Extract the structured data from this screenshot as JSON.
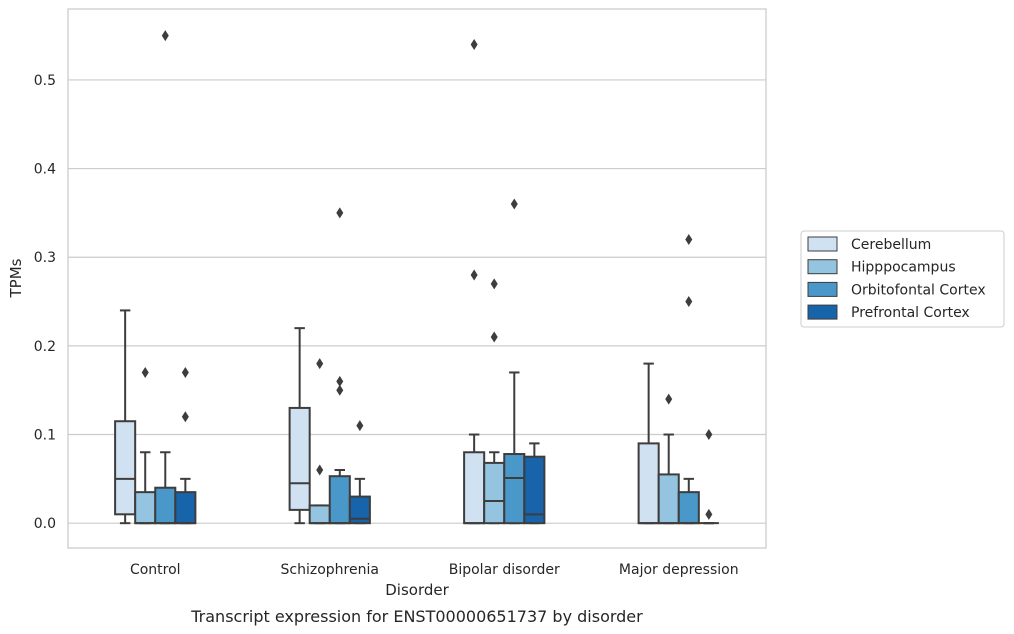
{
  "chart_data": {
    "type": "boxplot",
    "title": "",
    "caption": "Transcript expression for ENST00000651737 by disorder",
    "xlabel": "Disorder",
    "ylabel": "TPMs",
    "ylim": [
      -0.028,
      0.58
    ],
    "yticks": [
      "0.0",
      "0.1",
      "0.2",
      "0.3",
      "0.4",
      "0.5"
    ],
    "grid": true,
    "legend_position": "right",
    "categories": [
      "Control",
      "Schizophrenia",
      "Bipolar disorder",
      "Major depression"
    ],
    "series": [
      {
        "name": "Cerebellum",
        "color": "#d0e1f2",
        "boxes": [
          {
            "whisker_low": 0.0,
            "q1": 0.01,
            "median": 0.05,
            "q3": 0.115,
            "whisker_high": 0.24,
            "outliers": []
          },
          {
            "whisker_low": 0.0,
            "q1": 0.015,
            "median": 0.045,
            "q3": 0.13,
            "whisker_high": 0.22,
            "outliers": []
          },
          {
            "whisker_low": 0.0,
            "q1": 0.0,
            "median": 0.0,
            "q3": 0.08,
            "whisker_high": 0.1,
            "outliers": [
              0.28,
              0.54
            ]
          },
          {
            "whisker_low": 0.0,
            "q1": 0.0,
            "median": 0.0,
            "q3": 0.09,
            "whisker_high": 0.18,
            "outliers": []
          }
        ]
      },
      {
        "name": "Hipppocampus",
        "color": "#94c4df",
        "boxes": [
          {
            "whisker_low": 0.0,
            "q1": 0.0,
            "median": 0.0,
            "q3": 0.035,
            "whisker_high": 0.08,
            "outliers": [
              0.17
            ]
          },
          {
            "whisker_low": 0.0,
            "q1": 0.0,
            "median": 0.0,
            "q3": 0.02,
            "whisker_high": 0.02,
            "outliers": [
              0.06,
              0.18
            ]
          },
          {
            "whisker_low": 0.0,
            "q1": 0.0,
            "median": 0.025,
            "q3": 0.068,
            "whisker_high": 0.08,
            "outliers": [
              0.21,
              0.27
            ]
          },
          {
            "whisker_low": 0.0,
            "q1": 0.0,
            "median": 0.0,
            "q3": 0.055,
            "whisker_high": 0.1,
            "outliers": [
              0.14
            ]
          }
        ]
      },
      {
        "name": "Orbitofontal Cortex",
        "color": "#4a98c9",
        "boxes": [
          {
            "whisker_low": 0.0,
            "q1": 0.0,
            "median": 0.0,
            "q3": 0.04,
            "whisker_high": 0.08,
            "outliers": [
              0.55
            ]
          },
          {
            "whisker_low": 0.0,
            "q1": 0.0,
            "median": 0.0,
            "q3": 0.053,
            "whisker_high": 0.06,
            "outliers": [
              0.15,
              0.16,
              0.35
            ]
          },
          {
            "whisker_low": 0.0,
            "q1": 0.0,
            "median": 0.051,
            "q3": 0.078,
            "whisker_high": 0.17,
            "outliers": [
              0.36
            ]
          },
          {
            "whisker_low": 0.0,
            "q1": 0.0,
            "median": 0.0,
            "q3": 0.035,
            "whisker_high": 0.05,
            "outliers": [
              0.25,
              0.32
            ]
          }
        ]
      },
      {
        "name": "Prefrontal Cortex",
        "color": "#1764ab",
        "boxes": [
          {
            "whisker_low": 0.0,
            "q1": 0.0,
            "median": 0.0,
            "q3": 0.035,
            "whisker_high": 0.05,
            "outliers": [
              0.12,
              0.17
            ]
          },
          {
            "whisker_low": 0.0,
            "q1": 0.0,
            "median": 0.005,
            "q3": 0.03,
            "whisker_high": 0.05,
            "outliers": [
              0.11
            ]
          },
          {
            "whisker_low": 0.0,
            "q1": 0.0,
            "median": 0.01,
            "q3": 0.075,
            "whisker_high": 0.09,
            "outliers": []
          },
          {
            "whisker_low": 0.0,
            "q1": 0.0,
            "median": 0.0,
            "q3": 0.0,
            "whisker_high": 0.0,
            "outliers": [
              0.01,
              0.1
            ]
          }
        ]
      }
    ]
  }
}
